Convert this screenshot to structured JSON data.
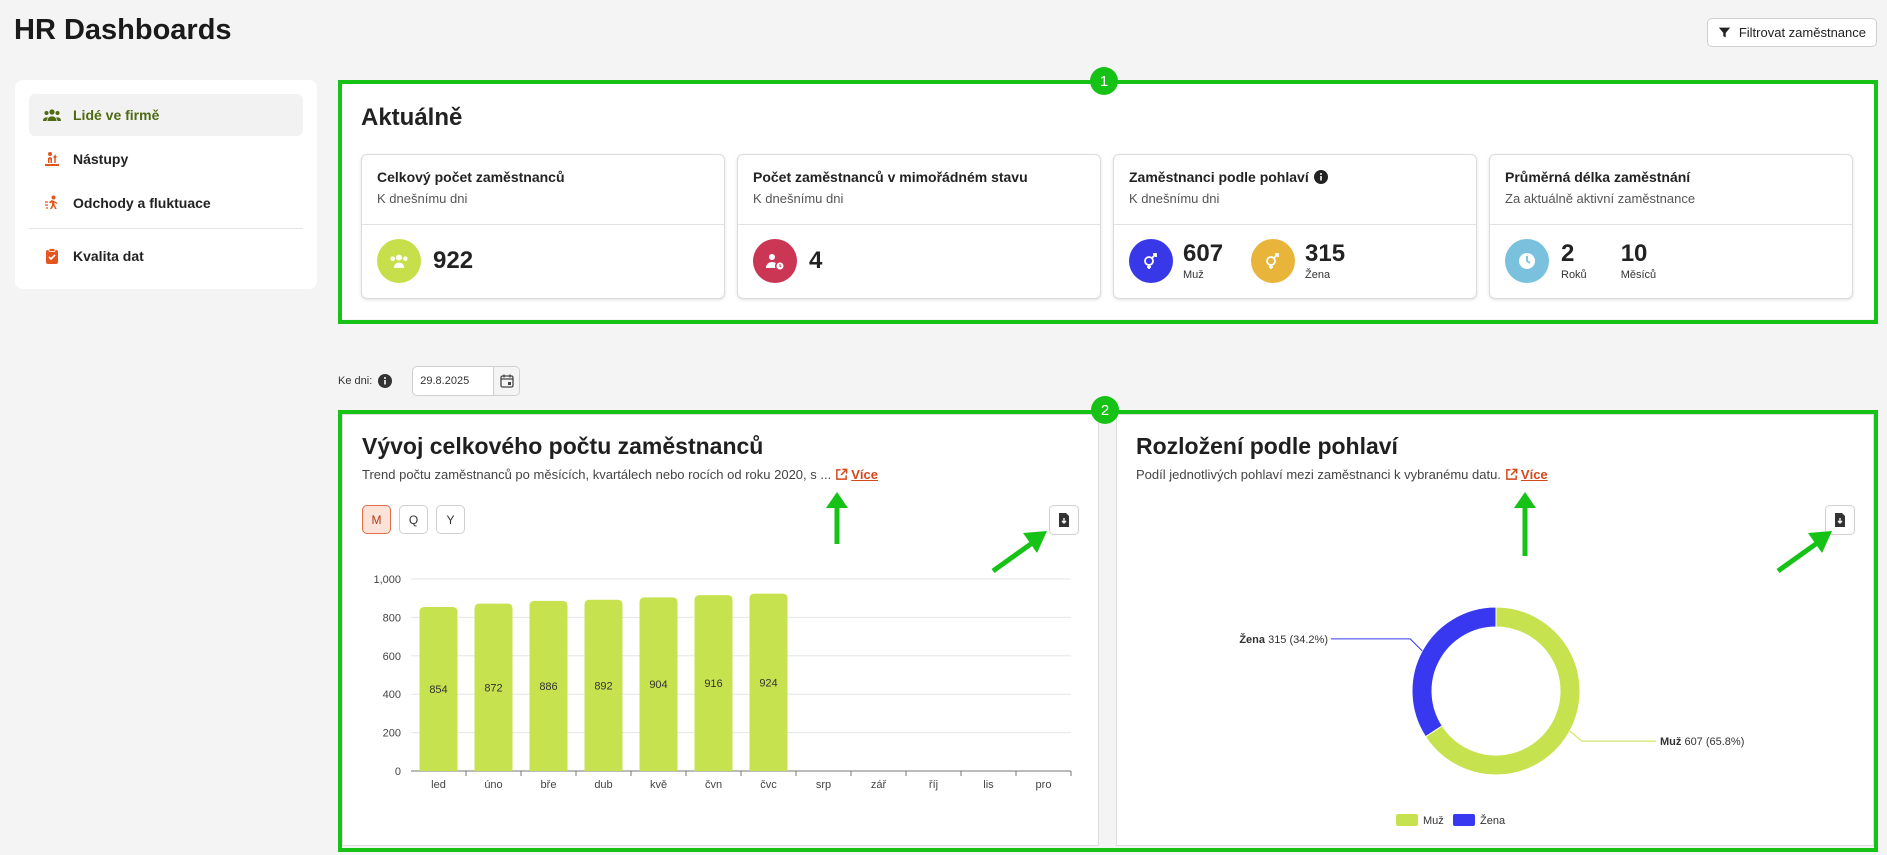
{
  "header": {
    "title": "HR Dashboards",
    "filter_label": "Filtrovat zaměstnance"
  },
  "sidebar": {
    "items": [
      {
        "label": "Lidé ve firmě",
        "icon": "people-icon",
        "active": true
      },
      {
        "label": "Nástupy",
        "icon": "onboarding-icon",
        "active": false
      },
      {
        "label": "Odchody a fluktuace",
        "icon": "exit-icon",
        "active": false
      },
      {
        "label": "Kvalita dat",
        "icon": "clipboard-check-icon",
        "active": false
      }
    ]
  },
  "annotations": [
    "1",
    "2"
  ],
  "current": {
    "title": "Aktuálně",
    "cards": [
      {
        "title": "Celkový počet zaměstnanců",
        "subtitle": "K dnešnímu dni",
        "value": "922",
        "icon": "people-icon",
        "color": "#c7df4a"
      },
      {
        "title": "Počet zaměstnanců v mimořádném stavu",
        "subtitle": "K dnešnímu dni",
        "value": "4",
        "icon": "person-clock-icon",
        "color": "#cc3655"
      },
      {
        "title": "Zaměstnanci podle pohlaví",
        "subtitle": "K dnešnímu dni",
        "values": [
          {
            "value": "607",
            "label": "Muž",
            "color": "#3838e8"
          },
          {
            "value": "315",
            "label": "Žena",
            "color": "#e8b43a"
          }
        ]
      },
      {
        "title": "Průměrná délka zaměstnání",
        "subtitle": "Za aktuálně aktivní zaměstnance",
        "values": [
          {
            "value": "2",
            "label": "Roků"
          },
          {
            "value": "10",
            "label": "Měsíců"
          }
        ],
        "color": "#79c1dd"
      }
    ]
  },
  "date_filter": {
    "label": "Ke dni:",
    "value": "29.8.2025"
  },
  "headcount_panel": {
    "title": "Vývoj celkového počtu zaměstnanců",
    "description": "Trend počtu zaměstnanců po měsících, kvartálech nebo rocích od roku 2020, s ...",
    "more_label": "Více",
    "periods": [
      "M",
      "Q",
      "Y"
    ],
    "active_period": "M"
  },
  "gender_panel": {
    "title": "Rozložení podle pohlaví",
    "description": "Podíl jednotlivých pohlaví mezi zaměstnanci k vybranému datu.",
    "more_label": "Více"
  },
  "chart_data": [
    {
      "type": "bar",
      "categories": [
        "led",
        "úno",
        "bře",
        "dub",
        "kvě",
        "čvn",
        "čvc",
        "srp",
        "zář",
        "říj",
        "lis",
        "pro"
      ],
      "values": [
        854,
        872,
        886,
        892,
        904,
        916,
        924,
        null,
        null,
        null,
        null,
        null
      ],
      "ylim": [
        0,
        1000
      ],
      "yticks": [
        "0",
        "200",
        "400",
        "600",
        "800",
        "1,000"
      ],
      "grid": true,
      "color": "#c7e24f"
    },
    {
      "type": "pie",
      "donut": true,
      "slices": [
        {
          "name": "Muž",
          "value": 607,
          "pct": "65.8%",
          "color": "#c7e24f"
        },
        {
          "name": "Žena",
          "value": 315,
          "pct": "34.2%",
          "color": "#3838f0"
        }
      ],
      "legend": "bottom"
    }
  ]
}
